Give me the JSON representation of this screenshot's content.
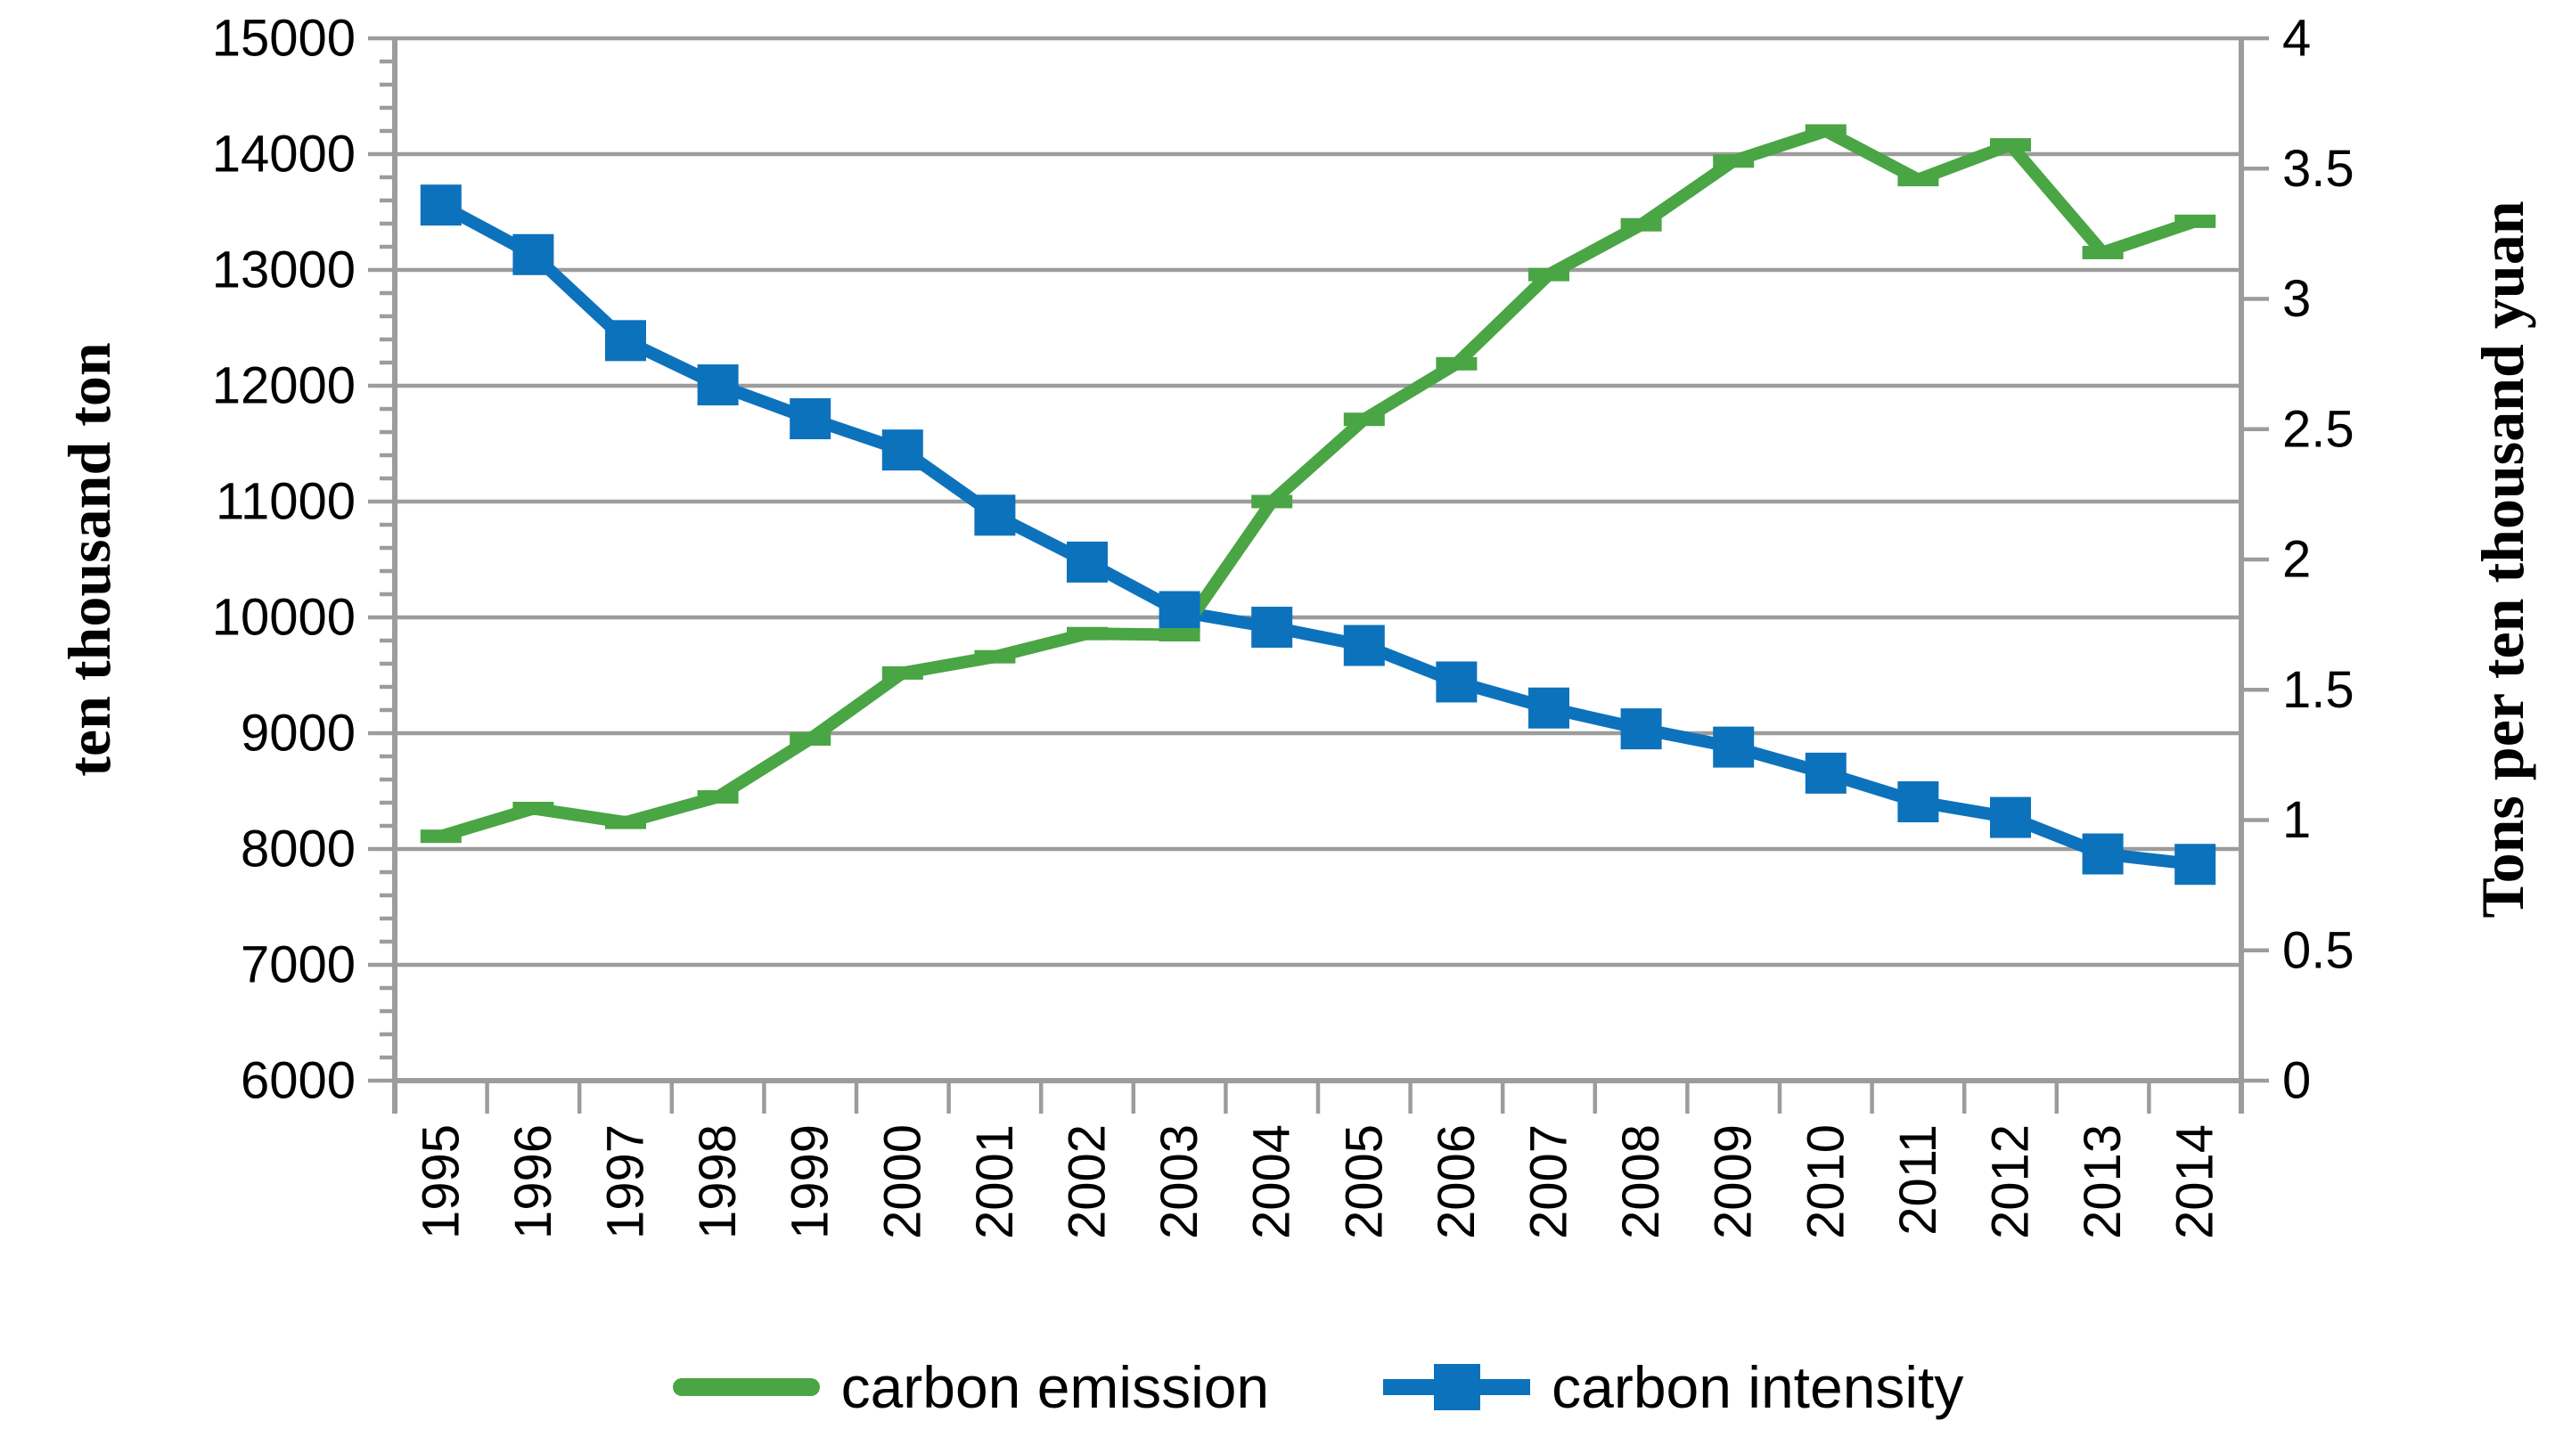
{
  "chart_data": {
    "type": "line",
    "title": "",
    "categories": [
      "1995",
      "1996",
      "1997",
      "1998",
      "1999",
      "2000",
      "2001",
      "2002",
      "2003",
      "2004",
      "2005",
      "2006",
      "2007",
      "2008",
      "2009",
      "2010",
      "2011",
      "2012",
      "2013",
      "2014"
    ],
    "series": [
      {
        "name": "carbon emission",
        "axis": "left",
        "color": "#4aa544",
        "marker": "dash",
        "values": [
          8110,
          8350,
          8230,
          8450,
          8950,
          9520,
          9660,
          9860,
          9850,
          11000,
          11710,
          12190,
          12960,
          13390,
          13940,
          14200,
          13780,
          14080,
          13150,
          13420
        ]
      },
      {
        "name": "carbon intensity",
        "axis": "right",
        "color": "#0d72bc",
        "marker": "square",
        "values": [
          3.36,
          3.17,
          2.84,
          2.67,
          2.54,
          2.42,
          2.17,
          1.99,
          1.8,
          1.74,
          1.67,
          1.53,
          1.43,
          1.35,
          1.28,
          1.18,
          1.07,
          1.01,
          0.87,
          0.83
        ]
      }
    ],
    "left_axis": {
      "label": "ten thousand ton",
      "min": 6000,
      "max": 15000,
      "major": 1000,
      "minor": 200,
      "ticks": [
        "6000",
        "7000",
        "8000",
        "9000",
        "10000",
        "11000",
        "12000",
        "13000",
        "14000",
        "15000"
      ]
    },
    "right_axis": {
      "label": "Tons per ten thousand yuan",
      "min": 0,
      "max": 4,
      "major": 0.5,
      "ticks": [
        "0",
        "0.5",
        "1",
        "1.5",
        "2",
        "2.5",
        "3",
        "3.5",
        "4"
      ]
    },
    "grid": true,
    "legend_position": "bottom"
  },
  "colors": {
    "grid": "#9c9c9c",
    "axis": "#9c9c9c",
    "text": "#000000",
    "background": "#ffffff"
  }
}
